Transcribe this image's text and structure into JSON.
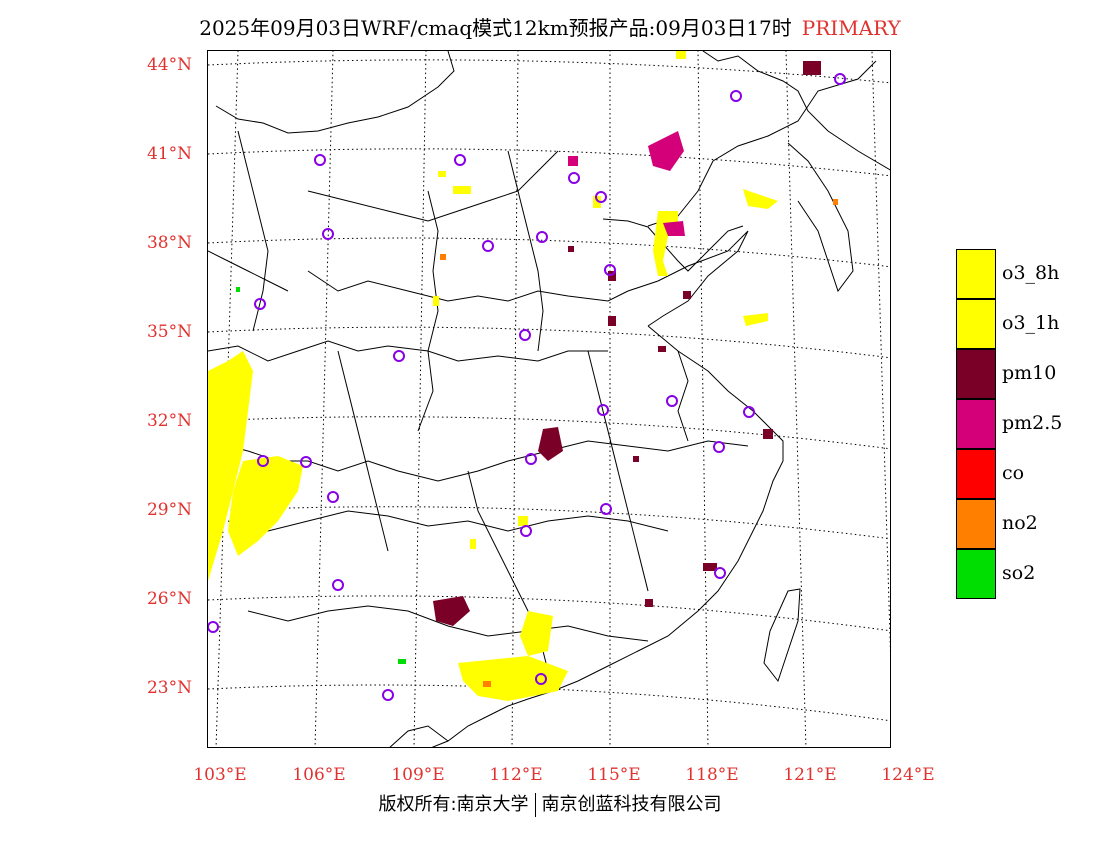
{
  "header": {
    "title": "2025年09月03日WRF/cmaq模式12km预报产品:09月03日17时",
    "tag": "PRIMARY"
  },
  "axes": {
    "lat_labels": [
      "44°N",
      "41°N",
      "38°N",
      "35°N",
      "32°N",
      "29°N",
      "26°N",
      "23°N"
    ],
    "lon_labels": [
      "103°E",
      "106°E",
      "109°E",
      "112°E",
      "115°E",
      "118°E",
      "121°E",
      "124°E"
    ]
  },
  "legend": {
    "items": [
      {
        "label": "o3_8h",
        "color": "#ffff00"
      },
      {
        "label": "o3_1h",
        "color": "#ffff00"
      },
      {
        "label": "pm10",
        "color": "#7b0028"
      },
      {
        "label": "pm2.5",
        "color": "#d4007a"
      },
      {
        "label": "co",
        "color": "#ff0000"
      },
      {
        "label": "no2",
        "color": "#ff7f00"
      },
      {
        "label": "so2",
        "color": "#00dd00"
      }
    ]
  },
  "footer": {
    "left": "版权所有:南京大学",
    "right": "南京创蓝科技有限公司"
  },
  "map_colors": {
    "station": "#8a00e6",
    "coast": "#000000"
  }
}
